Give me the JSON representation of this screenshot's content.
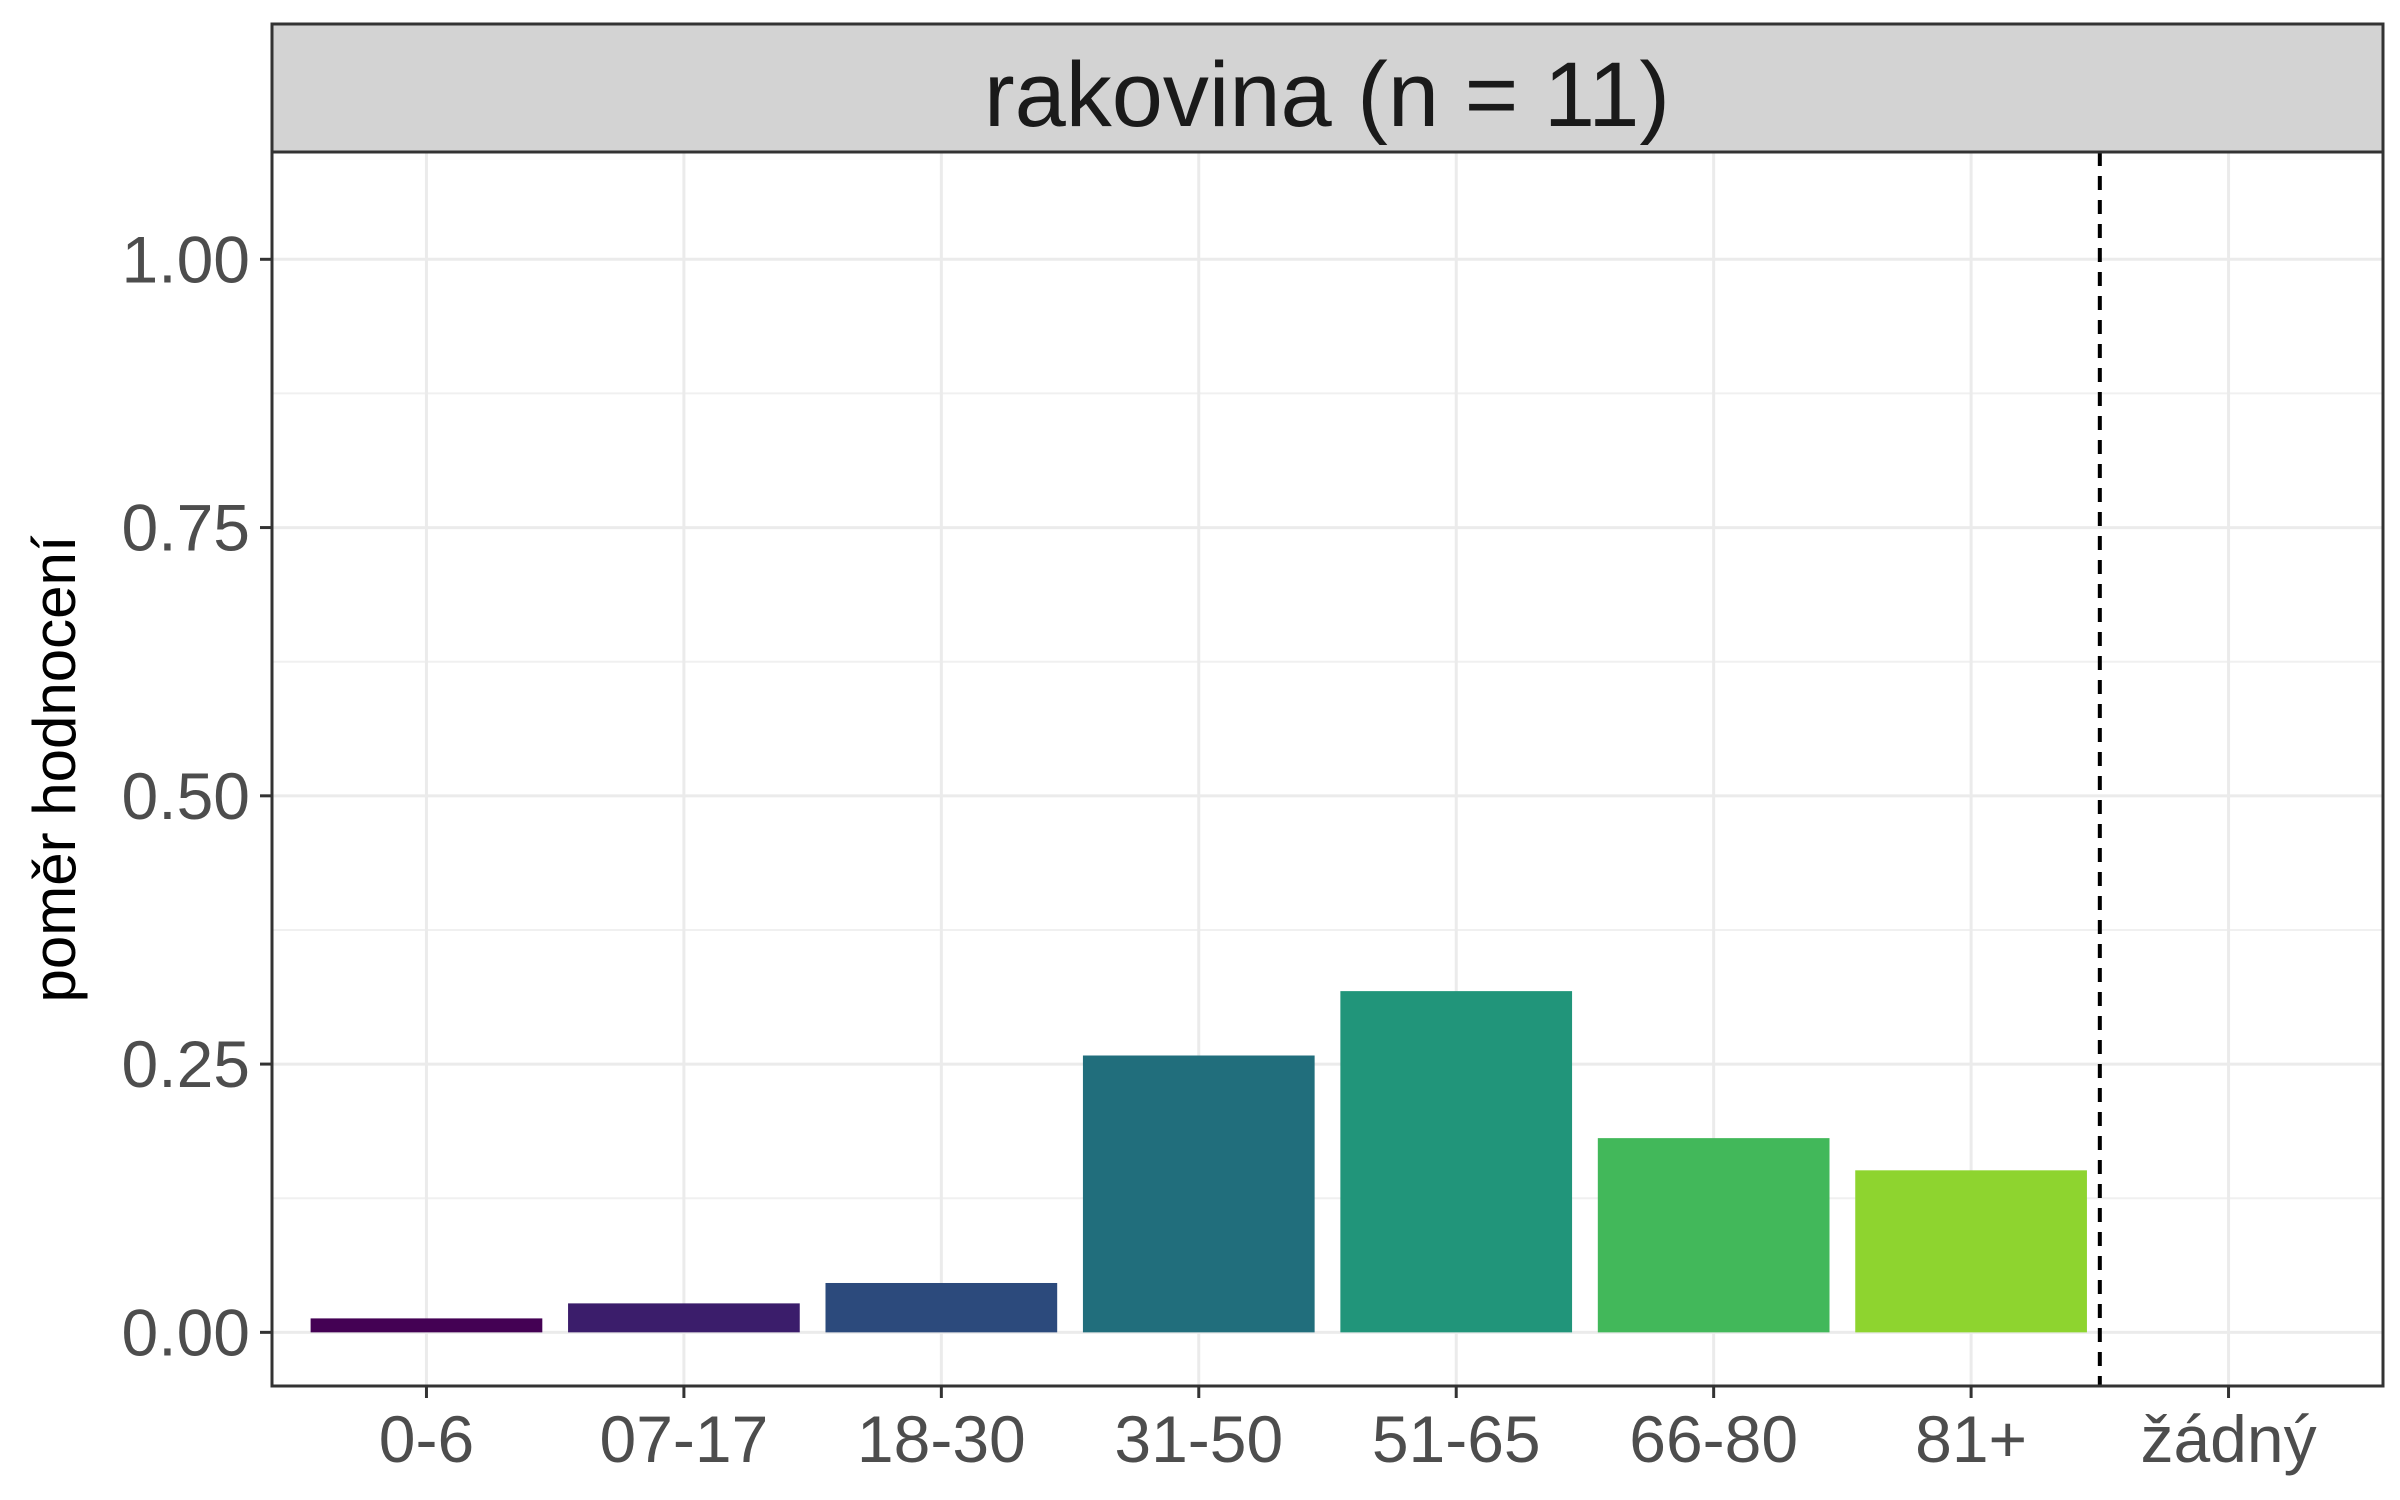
{
  "chart_data": {
    "type": "bar",
    "facet_title": "rakovina (n = 11)",
    "ylabel": "poměr hodnocení",
    "xlabel": "",
    "categories": [
      "0-6",
      "07-17",
      "18-30",
      "31-50",
      "51-65",
      "66-80",
      "81+",
      "žádný"
    ],
    "values": [
      0.013,
      0.027,
      0.046,
      0.258,
      0.318,
      0.181,
      0.151,
      0
    ],
    "colors": [
      "#440154",
      "#3b1d6b",
      "#2c4a7c",
      "#216e7c",
      "#21957a",
      "#42b85a",
      "#8ed42f",
      "#f0e51e"
    ],
    "ylim": [
      -0.05,
      1.1
    ],
    "yticks": [
      0,
      0.25,
      0.5,
      0.75,
      1.0
    ],
    "ytick_labels": [
      "0.00",
      "0.25",
      "0.50",
      "0.75",
      "1.00"
    ],
    "reference_line": {
      "position": "between 81+ and žádný",
      "style": "dashed",
      "color": "#000000"
    },
    "grid": true,
    "legend": "none"
  }
}
